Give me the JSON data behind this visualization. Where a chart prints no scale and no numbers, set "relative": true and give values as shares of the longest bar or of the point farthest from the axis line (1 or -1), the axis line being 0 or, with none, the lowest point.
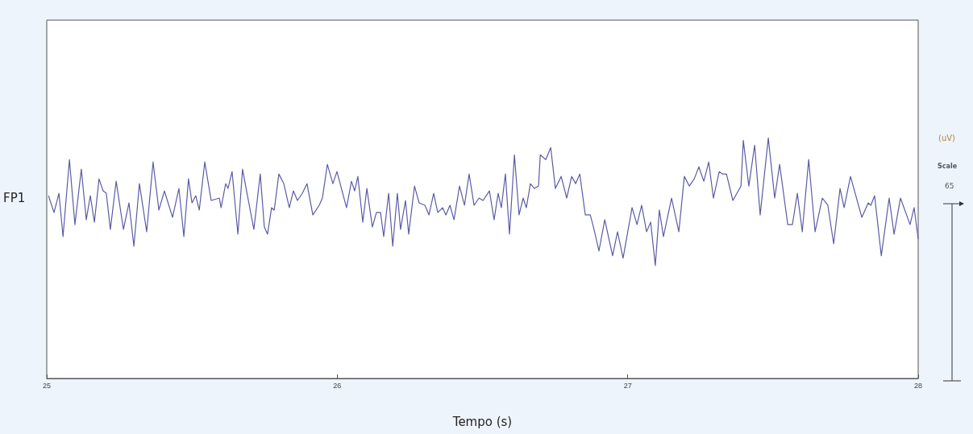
{
  "chart_data": {
    "type": "line",
    "relative": true,
    "xlabel": "Tempo (s)",
    "annotations": [
      "FP1",
      "(uV)",
      "Scale",
      "65"
    ],
    "xlim": [
      25,
      28
    ],
    "xticks": [
      25,
      26,
      27,
      28
    ],
    "grid": false,
    "marker": "none",
    "line_style": "solid",
    "series": [
      {
        "color": "#5b5ba6",
        "x": [
          25.006,
          25.025,
          25.042,
          25.056,
          25.078,
          25.097,
          25.119,
          25.136,
          25.15,
          25.164,
          25.18,
          25.194,
          25.205,
          25.219,
          25.239,
          25.264,
          25.283,
          25.3,
          25.319,
          25.344,
          25.366,
          25.386,
          25.405,
          25.433,
          25.455,
          25.472,
          25.488,
          25.5,
          25.513,
          25.525,
          25.544,
          25.566,
          25.594,
          25.6,
          25.616,
          25.624,
          25.638,
          25.658,
          25.674,
          25.691,
          25.713,
          25.735,
          25.749,
          25.76,
          25.774,
          25.783,
          25.799,
          25.816,
          25.835,
          25.849,
          25.863,
          25.88,
          25.896,
          25.916,
          25.938,
          25.949,
          25.966,
          25.985,
          25.999,
          26.032,
          26.049,
          26.06,
          26.071,
          26.088,
          26.102,
          26.121,
          26.135,
          26.149,
          26.16,
          26.177,
          26.191,
          26.207,
          26.218,
          26.235,
          26.246,
          26.266,
          26.282,
          26.302,
          26.316,
          26.332,
          26.346,
          26.363,
          26.374,
          26.388,
          26.402,
          26.421,
          26.438,
          26.454,
          26.471,
          26.488,
          26.502,
          26.524,
          26.54,
          26.554,
          26.565,
          26.579,
          26.593,
          26.61,
          26.626,
          26.64,
          26.651,
          26.665,
          26.679,
          26.693,
          26.699,
          26.718,
          26.735,
          26.751,
          26.771,
          26.79,
          26.807,
          26.821,
          26.835,
          26.854,
          26.871,
          26.882,
          26.901,
          26.921,
          26.948,
          26.965,
          26.984,
          27.015,
          27.032,
          27.048,
          27.065,
          27.079,
          27.095,
          27.109,
          27.123,
          27.151,
          27.176,
          27.195,
          27.212,
          27.229,
          27.245,
          27.262,
          27.279,
          27.295,
          27.315,
          27.326,
          27.34,
          27.362,
          27.39,
          27.398,
          27.417,
          27.437,
          27.456,
          27.484,
          27.506,
          27.523,
          27.551,
          27.567,
          27.584,
          27.601,
          27.623,
          27.645,
          27.67,
          27.689,
          27.709,
          27.731,
          27.745,
          27.767,
          27.806,
          27.828,
          27.837,
          27.85,
          27.873,
          27.9,
          27.917,
          27.939,
          27.972,
          27.986,
          28.0
        ],
        "values": [
          0.76,
          0.69,
          0.77,
          0.59,
          0.91,
          0.64,
          0.87,
          0.66,
          0.76,
          0.65,
          0.83,
          0.78,
          0.77,
          0.62,
          0.82,
          0.62,
          0.73,
          0.55,
          0.81,
          0.61,
          0.9,
          0.7,
          0.78,
          0.67,
          0.79,
          0.59,
          0.83,
          0.73,
          0.76,
          0.7,
          0.9,
          0.74,
          0.75,
          0.71,
          0.81,
          0.79,
          0.86,
          0.6,
          0.87,
          0.76,
          0.62,
          0.85,
          0.63,
          0.6,
          0.71,
          0.7,
          0.85,
          0.81,
          0.71,
          0.78,
          0.74,
          0.77,
          0.81,
          0.68,
          0.72,
          0.75,
          0.89,
          0.81,
          0.86,
          0.71,
          0.82,
          0.78,
          0.84,
          0.65,
          0.79,
          0.63,
          0.69,
          0.69,
          0.59,
          0.77,
          0.55,
          0.77,
          0.62,
          0.74,
          0.6,
          0.8,
          0.73,
          0.72,
          0.68,
          0.77,
          0.69,
          0.71,
          0.68,
          0.72,
          0.66,
          0.8,
          0.72,
          0.85,
          0.72,
          0.75,
          0.74,
          0.78,
          0.66,
          0.77,
          0.71,
          0.85,
          0.6,
          0.93,
          0.68,
          0.75,
          0.71,
          0.81,
          0.79,
          0.8,
          0.93,
          0.91,
          0.96,
          0.79,
          0.84,
          0.75,
          0.84,
          0.81,
          0.85,
          0.68,
          0.68,
          0.63,
          0.53,
          0.66,
          0.51,
          0.61,
          0.5,
          0.71,
          0.64,
          0.72,
          0.61,
          0.65,
          0.47,
          0.7,
          0.59,
          0.75,
          0.61,
          0.84,
          0.8,
          0.83,
          0.88,
          0.82,
          0.9,
          0.75,
          0.86,
          0.85,
          0.85,
          0.74,
          0.8,
          0.99,
          0.8,
          0.97,
          0.68,
          1,
          0.75,
          0.89,
          0.64,
          0.64,
          0.77,
          0.61,
          0.91,
          0.61,
          0.75,
          0.72,
          0.56,
          0.79,
          0.71,
          0.84,
          0.67,
          0.73,
          0.72,
          0.76,
          0.51,
          0.75,
          0.6,
          0.75,
          0.64,
          0.71,
          0.58
        ]
      }
    ]
  }
}
